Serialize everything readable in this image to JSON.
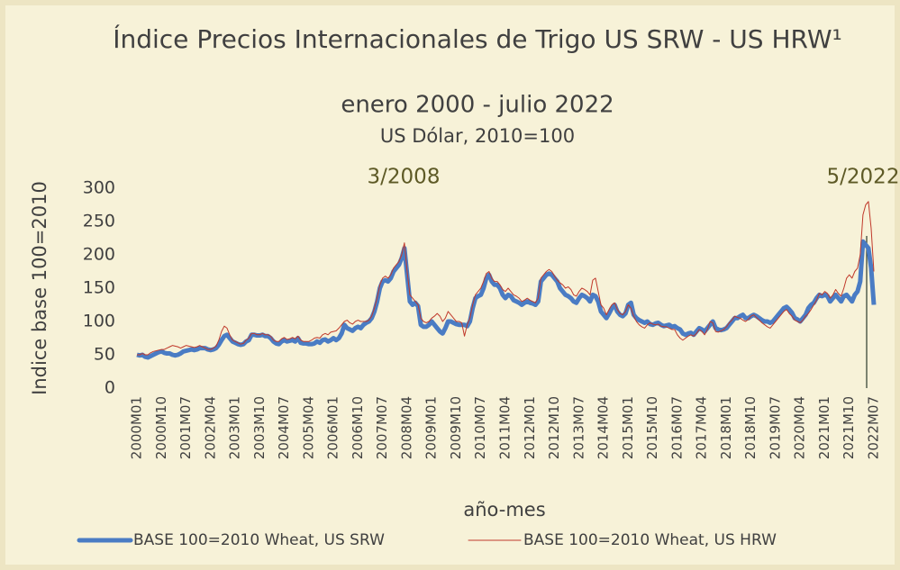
{
  "chart_data": {
    "type": "line",
    "title": "Índice Precios Internacionales de Trigo US SRW - US HRW¹",
    "subtitle": "enero 2000 - julio 2022",
    "subtitle2": "US Dólar, 2010=100",
    "y_label": "Indice base 100=2010",
    "x_label": "año-mes",
    "annotations": [
      "3/2008",
      "5/2022"
    ],
    "ylim": [
      0,
      300
    ],
    "yticks": [
      0,
      50,
      100,
      150,
      200,
      250,
      300
    ],
    "grid": false,
    "categories": [
      "2000M01",
      null,
      null,
      null,
      null,
      null,
      null,
      null,
      null,
      "2000M10",
      null,
      null,
      null,
      null,
      null,
      null,
      null,
      null,
      "2001M07",
      null,
      null,
      null,
      null,
      null,
      null,
      null,
      null,
      "2002M04",
      null,
      null,
      null,
      null,
      null,
      null,
      null,
      null,
      "2003M01",
      null,
      null,
      null,
      null,
      null,
      null,
      null,
      null,
      "2003M10",
      null,
      null,
      null,
      null,
      null,
      null,
      null,
      null,
      "2004M07",
      null,
      null,
      null,
      null,
      null,
      null,
      null,
      null,
      "2005M04",
      null,
      null,
      null,
      null,
      null,
      null,
      null,
      null,
      "2006M01",
      null,
      null,
      null,
      null,
      null,
      null,
      null,
      null,
      "2006M10",
      null,
      null,
      null,
      null,
      null,
      null,
      null,
      null,
      "2007M07",
      null,
      null,
      null,
      null,
      null,
      null,
      null,
      null,
      "2008M04",
      null,
      null,
      null,
      null,
      null,
      null,
      null,
      null,
      "2009M01",
      null,
      null,
      null,
      null,
      null,
      null,
      null,
      null,
      "2009M10",
      null,
      null,
      null,
      null,
      null,
      null,
      null,
      null,
      "2010M07",
      null,
      null,
      null,
      null,
      null,
      null,
      null,
      null,
      "2011M04",
      null,
      null,
      null,
      null,
      null,
      null,
      null,
      null,
      "2012M01",
      null,
      null,
      null,
      null,
      null,
      null,
      null,
      null,
      "2012M10",
      null,
      null,
      null,
      null,
      null,
      null,
      null,
      null,
      "2013M07",
      null,
      null,
      null,
      null,
      null,
      null,
      null,
      null,
      "2014M04",
      null,
      null,
      null,
      null,
      null,
      null,
      null,
      null,
      "2015M01",
      null,
      null,
      null,
      null,
      null,
      null,
      null,
      null,
      "2015M10",
      null,
      null,
      null,
      null,
      null,
      null,
      null,
      null,
      "2016M07",
      null,
      null,
      null,
      null,
      null,
      null,
      null,
      null,
      "2017M04",
      null,
      null,
      null,
      null,
      null,
      null,
      null,
      null,
      "2018M01",
      null,
      null,
      null,
      null,
      null,
      null,
      null,
      null,
      "2018M10",
      null,
      null,
      null,
      null,
      null,
      null,
      null,
      null,
      "2019M07",
      null,
      null,
      null,
      null,
      null,
      null,
      null,
      null,
      "2020M04",
      null,
      null,
      null,
      null,
      null,
      null,
      null,
      null,
      "2021M01",
      null,
      null,
      null,
      null,
      null,
      null,
      null,
      null,
      "2021M10",
      null,
      null,
      null,
      null,
      null,
      null,
      null,
      null,
      "2022M07"
    ],
    "series": [
      {
        "name": "BASE 100=2010 Wheat, US SRW",
        "color": "#4a7cc4",
        "width": 5,
        "values": [
          50,
          49,
          50,
          47,
          46,
          48,
          50,
          52,
          54,
          55,
          53,
          52,
          52,
          50,
          49,
          50,
          52,
          55,
          56,
          57,
          58,
          57,
          58,
          60,
          60,
          60,
          58,
          57,
          58,
          60,
          65,
          72,
          78,
          80,
          75,
          70,
          68,
          66,
          65,
          66,
          70,
          72,
          80,
          80,
          79,
          79,
          80,
          78,
          78,
          75,
          70,
          67,
          66,
          70,
          72,
          70,
          71,
          72,
          70,
          75,
          68,
          67,
          67,
          66,
          66,
          67,
          70,
          68,
          72,
          73,
          70,
          72,
          75,
          72,
          75,
          82,
          95,
          90,
          88,
          86,
          90,
          92,
          90,
          95,
          98,
          100,
          105,
          115,
          130,
          150,
          160,
          162,
          160,
          165,
          175,
          180,
          185,
          195,
          210,
          170,
          130,
          125,
          128,
          123,
          95,
          92,
          92,
          95,
          100,
          95,
          90,
          85,
          82,
          90,
          100,
          100,
          98,
          96,
          95,
          95,
          95,
          93,
          100,
          120,
          135,
          138,
          140,
          150,
          165,
          170,
          160,
          155,
          155,
          150,
          140,
          135,
          140,
          138,
          132,
          130,
          128,
          125,
          128,
          130,
          128,
          127,
          125,
          130,
          160,
          165,
          170,
          172,
          170,
          165,
          160,
          150,
          145,
          140,
          138,
          135,
          130,
          128,
          135,
          140,
          138,
          135,
          130,
          140,
          138,
          130,
          115,
          110,
          105,
          112,
          120,
          125,
          115,
          110,
          108,
          112,
          125,
          128,
          110,
          105,
          102,
          100,
          98,
          100,
          96,
          95,
          97,
          98,
          95,
          93,
          94,
          95,
          92,
          93,
          90,
          88,
          82,
          80,
          82,
          83,
          80,
          85,
          90,
          88,
          85,
          90,
          95,
          100,
          90,
          88,
          87,
          88,
          90,
          95,
          100,
          105,
          105,
          108,
          110,
          105,
          105,
          108,
          110,
          108,
          105,
          102,
          100,
          100,
          98,
          100,
          105,
          110,
          115,
          120,
          122,
          118,
          113,
          105,
          103,
          100,
          105,
          110,
          120,
          125,
          128,
          135,
          140,
          138,
          140,
          138,
          130,
          135,
          140,
          135,
          130,
          138,
          140,
          135,
          130,
          140,
          145,
          160,
          220,
          215,
          210,
          180,
          125
        ]
      },
      {
        "name": "BASE 100=2010 Wheat, US HRW",
        "color": "#c0392b",
        "width": 1,
        "values": [
          50,
          50,
          52,
          50,
          50,
          53,
          55,
          56,
          57,
          58,
          58,
          60,
          62,
          64,
          63,
          62,
          60,
          62,
          64,
          63,
          62,
          61,
          62,
          64,
          62,
          60,
          58,
          58,
          60,
          63,
          72,
          85,
          93,
          90,
          80,
          72,
          70,
          68,
          66,
          67,
          72,
          75,
          82,
          82,
          80,
          80,
          82,
          80,
          80,
          78,
          72,
          70,
          70,
          74,
          76,
          73,
          74,
          76,
          74,
          78,
          72,
          70,
          70,
          70,
          72,
          75,
          76,
          75,
          80,
          82,
          80,
          84,
          85,
          86,
          90,
          95,
          100,
          102,
          98,
          96,
          100,
          102,
          100,
          100,
          100,
          102,
          108,
          120,
          135,
          155,
          165,
          168,
          165,
          170,
          180,
          185,
          190,
          200,
          218,
          175,
          140,
          135,
          130,
          125,
          105,
          100,
          98,
          100,
          105,
          108,
          112,
          108,
          100,
          105,
          115,
          110,
          105,
          100,
          100,
          98,
          78,
          95,
          105,
          125,
          140,
          145,
          150,
          160,
          172,
          175,
          165,
          160,
          160,
          155,
          148,
          145,
          150,
          145,
          140,
          138,
          135,
          130,
          132,
          135,
          132,
          130,
          128,
          135,
          165,
          170,
          175,
          178,
          175,
          168,
          162,
          158,
          155,
          150,
          152,
          148,
          140,
          138,
          145,
          150,
          148,
          145,
          140,
          162,
          165,
          145,
          125,
          120,
          110,
          118,
          125,
          128,
          118,
          112,
          110,
          115,
          125,
          120,
          108,
          100,
          95,
          92,
          90,
          95,
          98,
          96,
          95,
          96,
          93,
          92,
          92,
          90,
          88,
          88,
          80,
          75,
          72,
          75,
          78,
          80,
          78,
          82,
          88,
          85,
          80,
          88,
          100,
          98,
          85,
          84,
          86,
          88,
          92,
          98,
          102,
          108,
          106,
          105,
          102,
          100,
          103,
          108,
          110,
          106,
          102,
          98,
          95,
          92,
          90,
          95,
          100,
          105,
          110,
          115,
          118,
          112,
          108,
          102,
          100,
          98,
          102,
          108,
          112,
          118,
          125,
          132,
          142,
          140,
          145,
          142,
          135,
          140,
          148,
          142,
          138,
          150,
          165,
          170,
          165,
          175,
          180,
          200,
          260,
          275,
          280,
          240,
          175
        ]
      }
    ]
  }
}
